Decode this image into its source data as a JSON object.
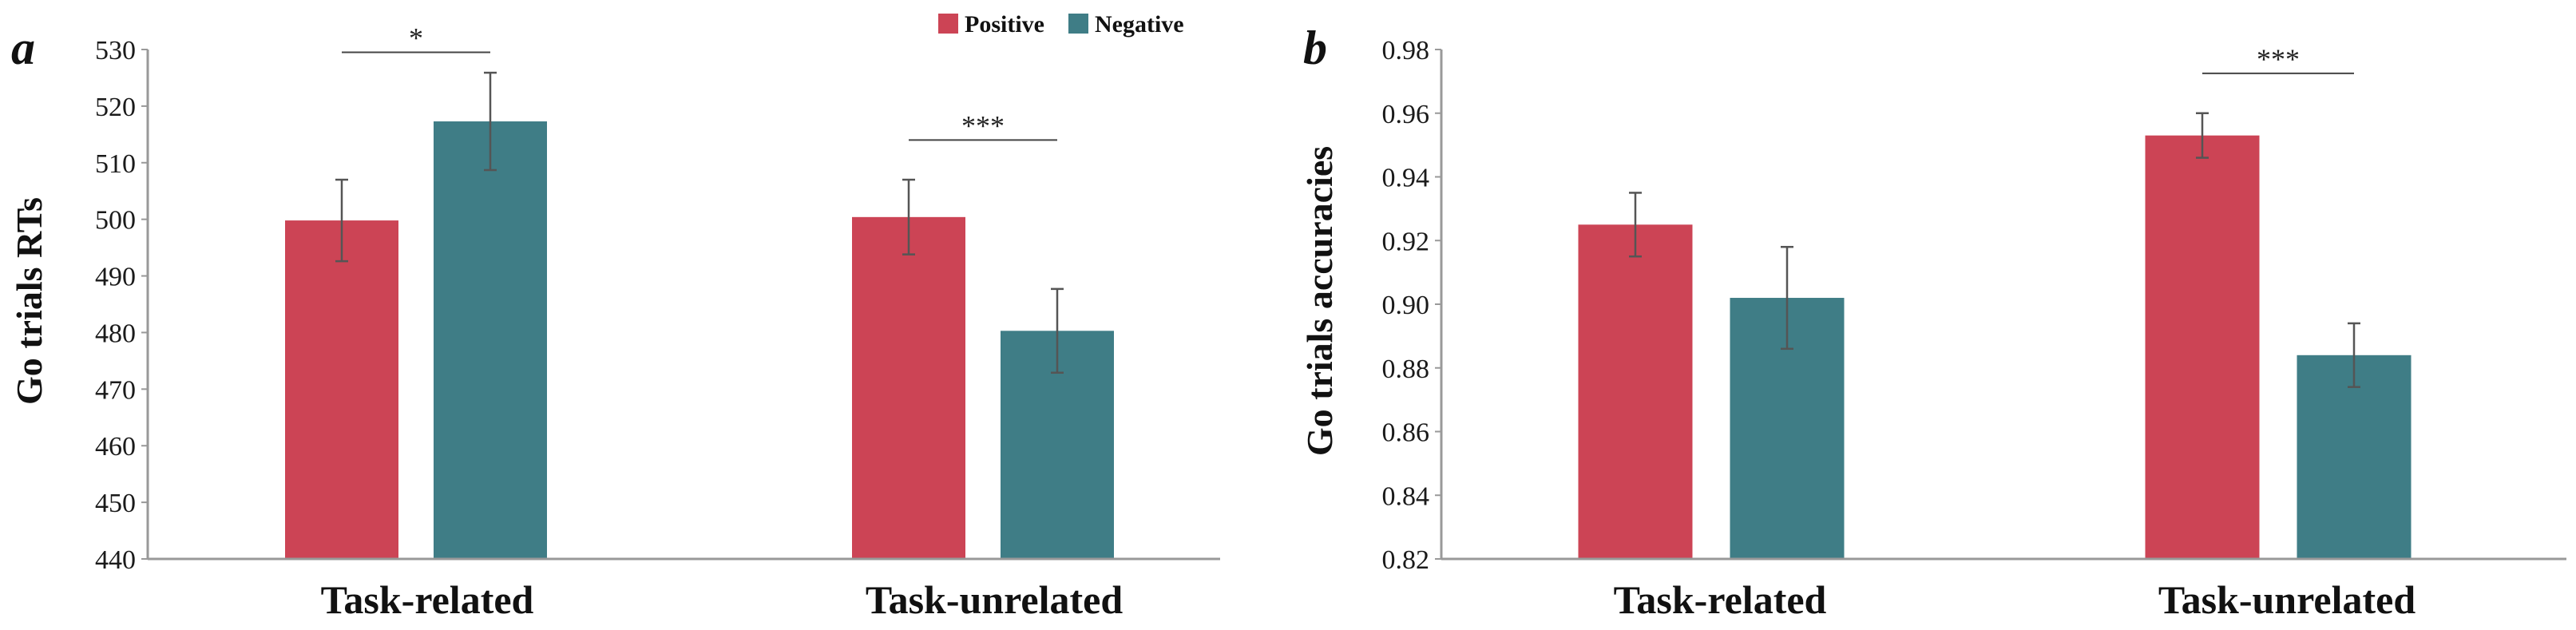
{
  "legend": [
    {
      "label": "Positive",
      "color": "#cc4455"
    },
    {
      "label": "Negative",
      "color": "#3f7d86"
    }
  ],
  "chart_data": [
    {
      "type": "bar",
      "panel_label": "a",
      "ylabel": "Go trials RTs",
      "categories": [
        "Task-related",
        "Task-unrelated"
      ],
      "ylim": [
        440,
        530
      ],
      "yticks": [
        "440",
        "450",
        "460",
        "470",
        "480",
        "490",
        "500",
        "510",
        "520",
        "530"
      ],
      "ytick_values": [
        440,
        450,
        460,
        470,
        480,
        490,
        500,
        510,
        520,
        530
      ],
      "series": [
        {
          "name": "Positive",
          "color": "#cc4455",
          "values": [
            499.8,
            500.4
          ],
          "errors": [
            7.2,
            6.6
          ]
        },
        {
          "name": "Negative",
          "color": "#3f7d86",
          "values": [
            517.3,
            480.3
          ],
          "errors": [
            8.6,
            7.4
          ]
        }
      ],
      "significance": [
        {
          "category_index": 0,
          "label": "*",
          "y": 529.5
        },
        {
          "category_index": 1,
          "label": "***",
          "y": 514
        }
      ]
    },
    {
      "type": "bar",
      "panel_label": "b",
      "ylabel": "Go trials accuracies",
      "categories": [
        "Task-related",
        "Task-unrelated"
      ],
      "ylim": [
        0.82,
        0.98
      ],
      "yticks": [
        "0.82",
        "0.84",
        "0.86",
        "0.88",
        "0.90",
        "0.92",
        "0.94",
        "0.96",
        "0.98"
      ],
      "ytick_values": [
        0.82,
        0.84,
        0.86,
        0.88,
        0.9,
        0.92,
        0.94,
        0.96,
        0.98
      ],
      "series": [
        {
          "name": "Positive",
          "color": "#cc4455",
          "values": [
            0.925,
            0.953
          ],
          "errors": [
            0.01,
            0.007
          ]
        },
        {
          "name": "Negative",
          "color": "#3f7d86",
          "values": [
            0.902,
            0.884
          ],
          "errors": [
            0.016,
            0.01
          ]
        }
      ],
      "significance": [
        {
          "category_index": 1,
          "label": "***",
          "y": 0.9725
        }
      ]
    }
  ]
}
